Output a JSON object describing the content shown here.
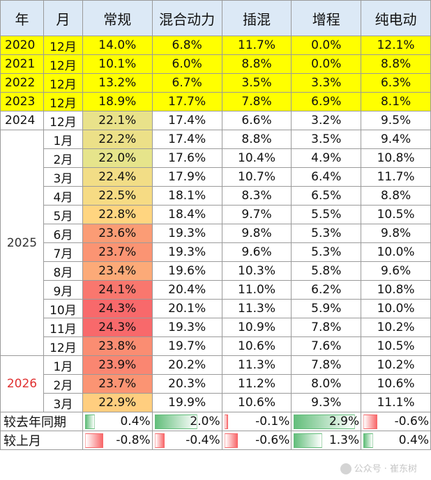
{
  "headers": [
    "年",
    "月",
    "常规",
    "混合动力",
    "插混",
    "增程",
    "纯电动"
  ],
  "rows": [
    {
      "year": "2020",
      "month": "12月",
      "v": [
        "14.0%",
        "6.8%",
        "11.7%",
        "0.0%",
        "12.1%"
      ],
      "highlight": true
    },
    {
      "year": "2021",
      "month": "12月",
      "v": [
        "10.1%",
        "6.0%",
        "8.8%",
        "0.0%",
        "8.8%"
      ],
      "highlight": true
    },
    {
      "year": "2022",
      "month": "12月",
      "v": [
        "13.2%",
        "6.7%",
        "3.5%",
        "3.3%",
        "6.3%"
      ],
      "highlight": true
    },
    {
      "year": "2023",
      "month": "12月",
      "v": [
        "18.9%",
        "17.7%",
        "7.8%",
        "6.9%",
        "8.1%"
      ],
      "highlight": true
    },
    {
      "year": "2024",
      "month": "12月",
      "v": [
        "22.1%",
        "17.4%",
        "6.6%",
        "3.2%",
        "9.5%"
      ],
      "highlight": false
    },
    {
      "year": "",
      "month": "1月",
      "v": [
        "22.2%",
        "17.4%",
        "8.8%",
        "3.5%",
        "9.4%"
      ],
      "highlight": false
    },
    {
      "year": "",
      "month": "2月",
      "v": [
        "22.0%",
        "17.6%",
        "10.4%",
        "4.9%",
        "10.8%"
      ],
      "highlight": false
    },
    {
      "year": "",
      "month": "3月",
      "v": [
        "22.4%",
        "17.9%",
        "10.7%",
        "6.4%",
        "11.7%"
      ],
      "highlight": false
    },
    {
      "year": "",
      "month": "4月",
      "v": [
        "22.5%",
        "18.1%",
        "8.3%",
        "6.5%",
        "8.8%"
      ],
      "highlight": false
    },
    {
      "year": "",
      "month": "5月",
      "v": [
        "22.8%",
        "18.4%",
        "9.7%",
        "5.5%",
        "10.5%"
      ],
      "highlight": false
    },
    {
      "year": "",
      "month": "6月",
      "v": [
        "23.6%",
        "19.3%",
        "9.8%",
        "5.3%",
        "9.8%"
      ],
      "highlight": false
    },
    {
      "year": "",
      "month": "7月",
      "v": [
        "23.7%",
        "19.3%",
        "9.6%",
        "5.3%",
        "10.0%"
      ],
      "highlight": false
    },
    {
      "year": "",
      "month": "8月",
      "v": [
        "23.4%",
        "19.6%",
        "10.3%",
        "5.8%",
        "9.6%"
      ],
      "highlight": false
    },
    {
      "year": "",
      "month": "9月",
      "v": [
        "24.1%",
        "20.4%",
        "11.0%",
        "6.2%",
        "10.8%"
      ],
      "highlight": false
    },
    {
      "year": "",
      "month": "10月",
      "v": [
        "24.3%",
        "20.1%",
        "11.3%",
        "5.9%",
        "10.0%"
      ],
      "highlight": false
    },
    {
      "year": "",
      "month": "11月",
      "v": [
        "24.3%",
        "19.3%",
        "10.9%",
        "7.8%",
        "10.2%"
      ],
      "highlight": false
    },
    {
      "year": "",
      "month": "12月",
      "v": [
        "23.8%",
        "19.7%",
        "10.6%",
        "7.6%",
        "10.5%"
      ],
      "highlight": false
    },
    {
      "year": "",
      "month": "1月",
      "v": [
        "23.9%",
        "20.2%",
        "11.3%",
        "7.8%",
        "10.2%"
      ],
      "highlight": false
    },
    {
      "year": "",
      "month": "2月",
      "v": [
        "23.7%",
        "20.3%",
        "11.2%",
        "8.0%",
        "10.6%"
      ],
      "highlight": false
    },
    {
      "year": "",
      "month": "3月",
      "v": [
        "22.9%",
        "19.9%",
        "10.6%",
        "9.3%",
        "11.1%"
      ],
      "highlight": false
    }
  ],
  "year_groups": [
    {
      "label": "2025",
      "color": "#333333"
    },
    {
      "label": "2026",
      "color": "#e03030"
    }
  ],
  "comparisons": [
    {
      "label": "较去年同期",
      "values": [
        0.4,
        2.0,
        -0.1,
        2.9,
        -0.6
      ],
      "texts": [
        "0.4%",
        "2.0%",
        "-0.1%",
        "2.9%",
        "-0.6%"
      ]
    },
    {
      "label": "较上月",
      "values": [
        -0.8,
        -0.4,
        -0.6,
        1.3,
        0.4
      ],
      "texts": [
        "-0.8%",
        "-0.4%",
        "-0.6%",
        "1.3%",
        "0.4%"
      ]
    }
  ],
  "heat_colors": {
    "low": "#ffeb84",
    "mid": "#ffd280",
    "high": "#f8696b",
    "green": "#e8e58a"
  },
  "watermark": "公众号 · 崔东树"
}
